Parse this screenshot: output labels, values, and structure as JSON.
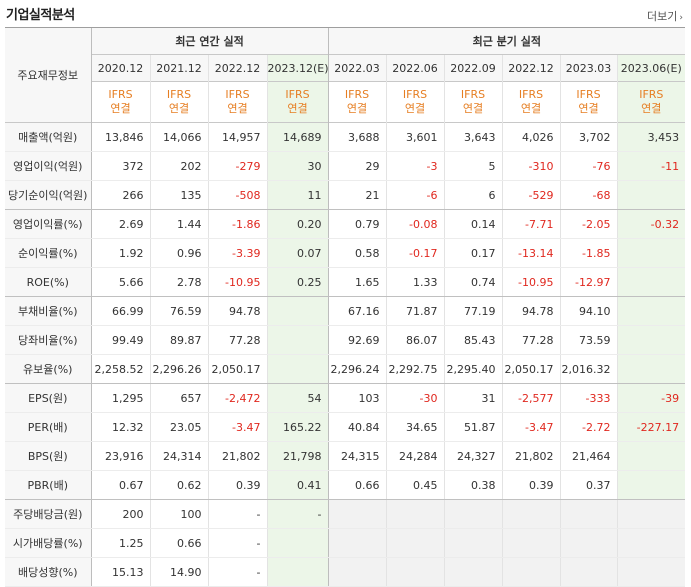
{
  "title": "기업실적분석",
  "more_label": "더보기",
  "header": {
    "corner": "주요재무정보",
    "annual_group": "최근 연간 실적",
    "quarter_group": "최근 분기 실적",
    "annual_periods": [
      "2020.12",
      "2021.12",
      "2022.12",
      "2023.12(E)"
    ],
    "quarter_periods": [
      "2022.03",
      "2022.06",
      "2022.09",
      "2022.12",
      "2023.03",
      "2023.06(E)"
    ],
    "ifrs_top": "IFRS",
    "ifrs_bottom": "연결"
  },
  "rows": [
    {
      "label": "매출액(억원)",
      "a": [
        "13,846",
        "14,066",
        "14,957",
        "14,689"
      ],
      "q": [
        "3,688",
        "3,601",
        "3,643",
        "4,026",
        "3,702",
        "3,453"
      ]
    },
    {
      "label": "영업이익(억원)",
      "a": [
        "372",
        "202",
        "-279",
        "30"
      ],
      "q": [
        "29",
        "-3",
        "5",
        "-310",
        "-76",
        "-11"
      ]
    },
    {
      "label": "당기순이익(억원)",
      "a": [
        "266",
        "135",
        "-508",
        "11"
      ],
      "q": [
        "21",
        "-6",
        "6",
        "-529",
        "-68",
        ""
      ]
    },
    {
      "label": "영업이익률(%)",
      "a": [
        "2.69",
        "1.44",
        "-1.86",
        "0.20"
      ],
      "q": [
        "0.79",
        "-0.08",
        "0.14",
        "-7.71",
        "-2.05",
        "-0.32"
      ]
    },
    {
      "label": "순이익률(%)",
      "a": [
        "1.92",
        "0.96",
        "-3.39",
        "0.07"
      ],
      "q": [
        "0.58",
        "-0.17",
        "0.17",
        "-13.14",
        "-1.85",
        ""
      ]
    },
    {
      "label": "ROE(%)",
      "a": [
        "5.66",
        "2.78",
        "-10.95",
        "0.25"
      ],
      "q": [
        "1.65",
        "1.33",
        "0.74",
        "-10.95",
        "-12.97",
        ""
      ]
    },
    {
      "label": "부채비율(%)",
      "a": [
        "66.99",
        "76.59",
        "94.78",
        ""
      ],
      "q": [
        "67.16",
        "71.87",
        "77.19",
        "94.78",
        "94.10",
        ""
      ]
    },
    {
      "label": "당좌비율(%)",
      "a": [
        "99.49",
        "89.87",
        "77.28",
        ""
      ],
      "q": [
        "92.69",
        "86.07",
        "85.43",
        "77.28",
        "73.59",
        ""
      ]
    },
    {
      "label": "유보율(%)",
      "a": [
        "2,258.52",
        "2,296.26",
        "2,050.17",
        ""
      ],
      "q": [
        "2,296.24",
        "2,292.75",
        "2,295.40",
        "2,050.17",
        "2,016.32",
        ""
      ]
    },
    {
      "label": "EPS(원)",
      "a": [
        "1,295",
        "657",
        "-2,472",
        "54"
      ],
      "q": [
        "103",
        "-30",
        "31",
        "-2,577",
        "-333",
        "-39"
      ]
    },
    {
      "label": "PER(배)",
      "a": [
        "12.32",
        "23.05",
        "-3.47",
        "165.22"
      ],
      "q": [
        "40.84",
        "34.65",
        "51.87",
        "-3.47",
        "-2.72",
        "-227.17"
      ]
    },
    {
      "label": "BPS(원)",
      "a": [
        "23,916",
        "24,314",
        "21,802",
        "21,798"
      ],
      "q": [
        "24,315",
        "24,284",
        "24,327",
        "21,802",
        "21,464",
        ""
      ]
    },
    {
      "label": "PBR(배)",
      "a": [
        "0.67",
        "0.62",
        "0.39",
        "0.41"
      ],
      "q": [
        "0.66",
        "0.45",
        "0.38",
        "0.39",
        "0.37",
        ""
      ]
    },
    {
      "label": "주당배당금(원)",
      "a": [
        "200",
        "100",
        "-",
        "-"
      ],
      "q": [
        "",
        "",
        "",
        "",
        "",
        ""
      ]
    },
    {
      "label": "시가배당률(%)",
      "a": [
        "1.25",
        "0.66",
        "-",
        ""
      ],
      "q": [
        "",
        "",
        "",
        "",
        "",
        ""
      ]
    },
    {
      "label": "배당성향(%)",
      "a": [
        "15.13",
        "14.90",
        "-",
        ""
      ],
      "q": [
        "",
        "",
        "",
        "",
        "",
        ""
      ]
    }
  ],
  "colors": {
    "negative": "#e0281f",
    "ifrs": "#e67e22",
    "estimate_bg": "#ecf6e8"
  }
}
